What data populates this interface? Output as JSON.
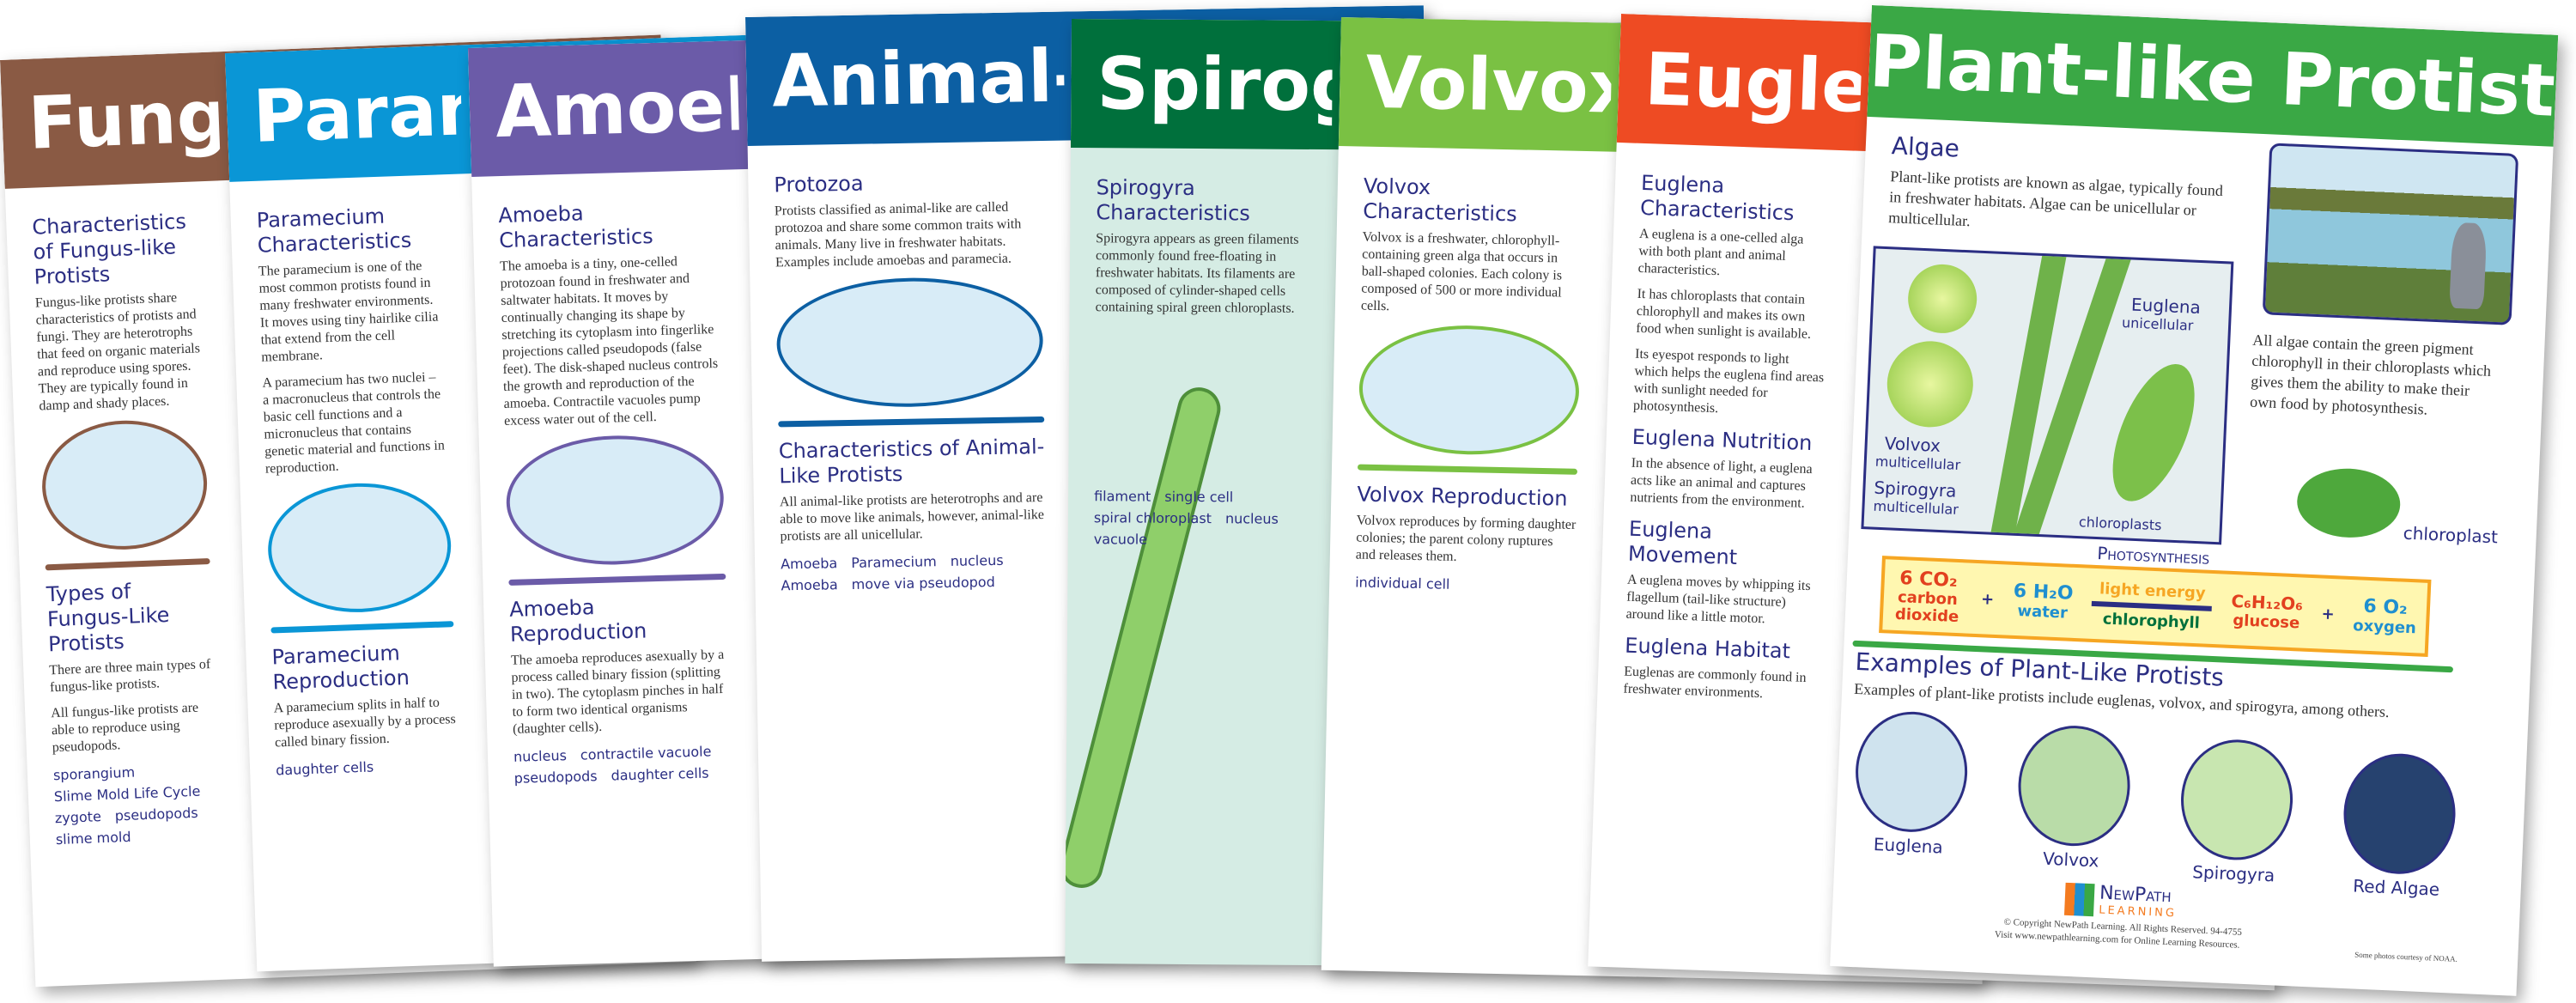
{
  "posters": [
    {
      "title": "Fungus-like Protists",
      "color": "#8a5a44",
      "sections": [
        {
          "heading": "Characteristics of Fungus-like Protists",
          "text": "Fungus-like protists share characteristics of protists and fungi. They are heterotrophs that feed on organic materials and reproduce using spores. They are typically found in damp and shady places."
        },
        {
          "heading": "Types of Fungus-Like Protists",
          "text": "There are three main types of fungus-like protists."
        }
      ],
      "labels": [
        "sporangium",
        "Slime Mold Life Cycle",
        "zygote",
        "pseudopods",
        "slime mold"
      ],
      "extra": "All fungus-like protists are able to reproduce using pseudopods."
    },
    {
      "title": "Paramecium",
      "color": "#0a96d6",
      "sections": [
        {
          "heading": "Paramecium Characteristics",
          "text": "The paramecium is one of the most common protists found in many freshwater environments. It moves using tiny hairlike cilia that extend from the cell membrane."
        },
        {
          "heading": "Paramecium Reproduction",
          "text": "A paramecium splits in half to reproduce asexually by a process called binary fission."
        }
      ],
      "text2": "A paramecium has two nuclei – a macronucleus that controls the basic cell functions and a micronucleus that contains genetic material and functions in reproduction.",
      "labels": [
        "daughter cells"
      ]
    },
    {
      "title": "Amoeba",
      "color": "#6b5ba8",
      "sections": [
        {
          "heading": "Amoeba Characteristics",
          "text": "The amoeba is a tiny, one-celled protozoan found in freshwater and saltwater habitats. It moves by continually changing its shape by stretching its cytoplasm into fingerlike projections called pseudopods (false feet). The disk-shaped nucleus controls the growth and reproduction of the amoeba. Contractile vacuoles pump excess water out of the cell."
        },
        {
          "heading": "Amoeba Reproduction",
          "text": "The amoeba reproduces asexually by a process called binary fission (splitting in two). The cytoplasm pinches in half to form two identical organisms (daughter cells)."
        }
      ],
      "labels": [
        "nucleus",
        "contractile vacuole",
        "pseudopods",
        "daughter cells"
      ]
    },
    {
      "title": "Animal-like Protists",
      "color": "#0c5fa3",
      "sections": [
        {
          "heading": "Protozoa",
          "text": "Protists classified as animal-like are called protozoa and share some common traits with animals. Many live in freshwater habitats. Examples include amoebas and paramecia."
        },
        {
          "heading": "Characteristics of Animal-Like Protists",
          "text": "All animal-like protists are heterotrophs and are able to move like animals, however, animal-like protists are all unicellular."
        }
      ],
      "labels": [
        "Amoeba",
        "Paramecium",
        "nucleus",
        "Amoeba",
        "move via pseudopod"
      ]
    },
    {
      "title": "Spirogyra",
      "color": "#00703c",
      "sections": [
        {
          "heading": "Spirogyra Characteristics",
          "text": "Spirogyra appears as green filaments commonly found free-floating in freshwater habitats. Its filaments are composed of cylinder-shaped cells containing spiral green chloroplasts."
        }
      ],
      "labels": [
        "filament",
        "single cell",
        "spiral chloroplast",
        "nucleus",
        "vacuole"
      ]
    },
    {
      "title": "Volvox",
      "color": "#7ac143",
      "sections": [
        {
          "heading": "Volvox Characteristics",
          "text": "Volvox is a freshwater, chlorophyll-containing green alga that occurs in ball-shaped colonies. Each colony is composed of 500 or more individual cells."
        },
        {
          "heading": "Volvox Reproduction",
          "text": "Volvox reproduces by forming daughter colonies; the parent colony ruptures and releases them."
        }
      ],
      "labels": [
        "individual cell"
      ]
    },
    {
      "title": "Euglena",
      "color": "#ee4b23",
      "sections": [
        {
          "heading": "Euglena Characteristics",
          "text": "A euglena is a one-celled alga with both plant and animal characteristics."
        },
        {
          "heading": "",
          "text": "It has chloroplasts that contain chlorophyll and makes its own food when sunlight is available."
        },
        {
          "heading": "",
          "text": "Its eyespot responds to light which helps the euglena find areas with sunlight needed for photosynthesis."
        },
        {
          "heading": "Euglena Nutrition",
          "text": "In the absence of light, a euglena acts like an animal and captures nutrients from the environment."
        },
        {
          "heading": "Euglena Movement",
          "text": "A euglena moves by whipping its flagellum (tail-like structure) around like a little motor."
        },
        {
          "heading": "Euglena Habitat",
          "text": "Euglenas are commonly found in freshwater environments."
        }
      ],
      "labels": []
    }
  ],
  "front": {
    "title": "Plant-like Protists",
    "color": "#3aa845",
    "algae_heading": "Algae",
    "algae_text": "Plant-like protists are known as algae, typically found in freshwater habitats. Algae can be unicellular or multicellular.",
    "labels": {
      "volvox": "Volvox",
      "volvox_sub": "multicellular",
      "spirogyra": "Spirogyra",
      "spirogyra_sub": "multicellular",
      "euglena": "Euglena",
      "euglena_sub": "unicellular",
      "chloroplasts": "chloroplasts",
      "chloroplast": "chloroplast"
    },
    "chlorophyll_text": "All algae contain the green pigment chlorophyll in their chloroplasts which gives them the ability to make their own food by photosynthesis.",
    "photosynthesis": {
      "title": "Photosynthesis",
      "co2": "6 CO₂",
      "co2_name": "carbon dioxide",
      "plus1": "+",
      "h2o": "6 H₂O",
      "h2o_name": "water",
      "above_arrow": "light energy",
      "below_arrow": "chlorophyll",
      "glucose": "C₆H₁₂O₆",
      "glucose_name": "glucose",
      "plus2": "+",
      "o2": "6 O₂",
      "o2_name": "oxygen"
    },
    "examples_heading": "Examples of Plant-Like Protists",
    "examples_text": "Examples of plant-like protists include euglenas, volvox, and spirogyra, among others.",
    "examples": [
      {
        "label": "Euglena",
        "color": "#cfe3ee"
      },
      {
        "label": "Volvox",
        "color": "#b9dca8"
      },
      {
        "label": "Spirogyra",
        "color": "#c8e6b0"
      },
      {
        "label": "Red Algae",
        "color": "#26426f"
      }
    ],
    "logo": {
      "line1": "NewPath",
      "line2": "Learning"
    },
    "copyright": "© Copyright NewPath Learning. All Rights Reserved. 94-4755",
    "visit": "Visit www.newpathlearning.com for Online Learning Resources.",
    "photo_credit": "Some photos courtesy of NOAA."
  }
}
